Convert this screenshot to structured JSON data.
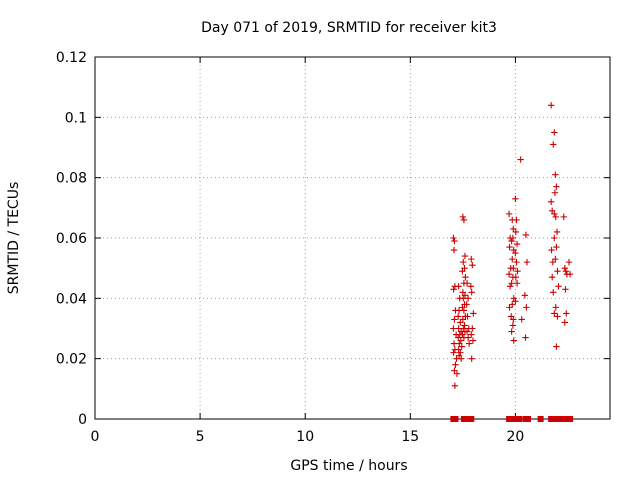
{
  "chart_data": {
    "type": "scatter",
    "title": "Day 071 of 2019, SRMTID for receiver kit3",
    "xlabel": "GPS time / hours",
    "ylabel": "SRMTID / TECUs",
    "xlim": [
      0,
      24.5
    ],
    "ylim": [
      0,
      0.12
    ],
    "x_ticks": [
      0,
      5,
      10,
      15,
      20
    ],
    "x_tick_labels": [
      "0",
      "5",
      "10",
      "15",
      "20"
    ],
    "y_ticks": [
      0,
      0.02,
      0.04,
      0.06,
      0.08,
      0.1,
      0.12
    ],
    "y_tick_labels": [
      "0",
      "0.02",
      "0.04",
      "0.06",
      "0.08",
      "0.1",
      "0.12"
    ],
    "grid": true,
    "marker": "plus",
    "color": "#cc0000",
    "points": [
      [
        17.05,
        0.06
      ],
      [
        17.1,
        0.059
      ],
      [
        17.08,
        0.056
      ],
      [
        17.12,
        0.044
      ],
      [
        17.06,
        0.043
      ],
      [
        17.15,
        0.036
      ],
      [
        17.1,
        0.033
      ],
      [
        17.05,
        0.03
      ],
      [
        17.18,
        0.028
      ],
      [
        17.08,
        0.025
      ],
      [
        17.12,
        0.023
      ],
      [
        17.06,
        0.022
      ],
      [
        17.2,
        0.02
      ],
      [
        17.15,
        0.018
      ],
      [
        17.1,
        0.016
      ],
      [
        17.22,
        0.015
      ],
      [
        17.12,
        0.011
      ],
      [
        17.3,
        0.044
      ],
      [
        17.35,
        0.04
      ],
      [
        17.32,
        0.036
      ],
      [
        17.28,
        0.034
      ],
      [
        17.38,
        0.032
      ],
      [
        17.3,
        0.03
      ],
      [
        17.42,
        0.029
      ],
      [
        17.35,
        0.028
      ],
      [
        17.28,
        0.027
      ],
      [
        17.4,
        0.026
      ],
      [
        17.33,
        0.025
      ],
      [
        17.45,
        0.024
      ],
      [
        17.3,
        0.023
      ],
      [
        17.38,
        0.022
      ],
      [
        17.32,
        0.021
      ],
      [
        17.42,
        0.02
      ],
      [
        17.5,
        0.067
      ],
      [
        17.55,
        0.066
      ],
      [
        17.6,
        0.054
      ],
      [
        17.52,
        0.052
      ],
      [
        17.58,
        0.05
      ],
      [
        17.48,
        0.049
      ],
      [
        17.62,
        0.047
      ],
      [
        17.55,
        0.045
      ],
      [
        17.5,
        0.042
      ],
      [
        17.6,
        0.041
      ],
      [
        17.52,
        0.04
      ],
      [
        17.58,
        0.038
      ],
      [
        17.48,
        0.037
      ],
      [
        17.55,
        0.036
      ],
      [
        17.62,
        0.034
      ],
      [
        17.5,
        0.033
      ],
      [
        17.58,
        0.031
      ],
      [
        17.52,
        0.03
      ],
      [
        17.6,
        0.029
      ],
      [
        17.48,
        0.028
      ],
      [
        17.55,
        0.027
      ],
      [
        17.7,
        0.045
      ],
      [
        17.75,
        0.04
      ],
      [
        17.68,
        0.038
      ],
      [
        17.72,
        0.034
      ],
      [
        17.78,
        0.03
      ],
      [
        17.7,
        0.029
      ],
      [
        17.75,
        0.027
      ],
      [
        17.8,
        0.025
      ],
      [
        17.9,
        0.053
      ],
      [
        17.95,
        0.051
      ],
      [
        17.88,
        0.044
      ],
      [
        17.92,
        0.042
      ],
      [
        18.0,
        0.035
      ],
      [
        17.95,
        0.03
      ],
      [
        17.9,
        0.028
      ],
      [
        17.98,
        0.026
      ],
      [
        17.92,
        0.02
      ],
      [
        19.7,
        0.068
      ],
      [
        19.75,
        0.06
      ],
      [
        19.72,
        0.057
      ],
      [
        19.78,
        0.05
      ],
      [
        19.7,
        0.048
      ],
      [
        19.75,
        0.044
      ],
      [
        19.72,
        0.037
      ],
      [
        19.8,
        0.034
      ],
      [
        19.85,
        0.066
      ],
      [
        19.9,
        0.063
      ],
      [
        19.88,
        0.06
      ],
      [
        19.82,
        0.059
      ],
      [
        19.92,
        0.056
      ],
      [
        19.85,
        0.053
      ],
      [
        19.9,
        0.05
      ],
      [
        19.88,
        0.047
      ],
      [
        19.82,
        0.045
      ],
      [
        19.92,
        0.04
      ],
      [
        19.85,
        0.038
      ],
      [
        19.9,
        0.033
      ],
      [
        19.88,
        0.031
      ],
      [
        19.82,
        0.029
      ],
      [
        19.92,
        0.026
      ],
      [
        20.0,
        0.073
      ],
      [
        20.05,
        0.066
      ],
      [
        20.02,
        0.062
      ],
      [
        20.08,
        0.058
      ],
      [
        20.0,
        0.055
      ],
      [
        20.05,
        0.052
      ],
      [
        20.1,
        0.049
      ],
      [
        20.02,
        0.047
      ],
      [
        20.08,
        0.045
      ],
      [
        20.0,
        0.039
      ],
      [
        20.25,
        0.086
      ],
      [
        20.3,
        0.033
      ],
      [
        20.5,
        0.061
      ],
      [
        20.55,
        0.052
      ],
      [
        20.45,
        0.041
      ],
      [
        20.52,
        0.037
      ],
      [
        20.48,
        0.027
      ],
      [
        21.7,
        0.104
      ],
      [
        21.85,
        0.095
      ],
      [
        21.8,
        0.091
      ],
      [
        21.9,
        0.081
      ],
      [
        21.95,
        0.077
      ],
      [
        21.88,
        0.075
      ],
      [
        21.7,
        0.072
      ],
      [
        21.75,
        0.069
      ],
      [
        21.85,
        0.068
      ],
      [
        21.92,
        0.067
      ],
      [
        21.98,
        0.062
      ],
      [
        21.85,
        0.06
      ],
      [
        21.95,
        0.057
      ],
      [
        21.72,
        0.056
      ],
      [
        21.9,
        0.053
      ],
      [
        21.78,
        0.052
      ],
      [
        22.0,
        0.049
      ],
      [
        21.75,
        0.047
      ],
      [
        22.05,
        0.044
      ],
      [
        21.8,
        0.042
      ],
      [
        21.92,
        0.037
      ],
      [
        21.85,
        0.035
      ],
      [
        22.0,
        0.034
      ],
      [
        21.95,
        0.024
      ],
      [
        22.3,
        0.067
      ],
      [
        22.35,
        0.05
      ],
      [
        22.4,
        0.049
      ],
      [
        22.45,
        0.048
      ],
      [
        22.38,
        0.043
      ],
      [
        22.42,
        0.035
      ],
      [
        22.35,
        0.032
      ],
      [
        22.55,
        0.052
      ],
      [
        22.6,
        0.048
      ]
    ],
    "zero_points_x": [
      17.05,
      17.15,
      17.55,
      17.65,
      17.9,
      19.7,
      19.8,
      20.0,
      20.1,
      20.2,
      20.5,
      20.6,
      21.2,
      21.7,
      21.8,
      21.9,
      22.0,
      22.2,
      22.3,
      22.5,
      22.6
    ]
  }
}
